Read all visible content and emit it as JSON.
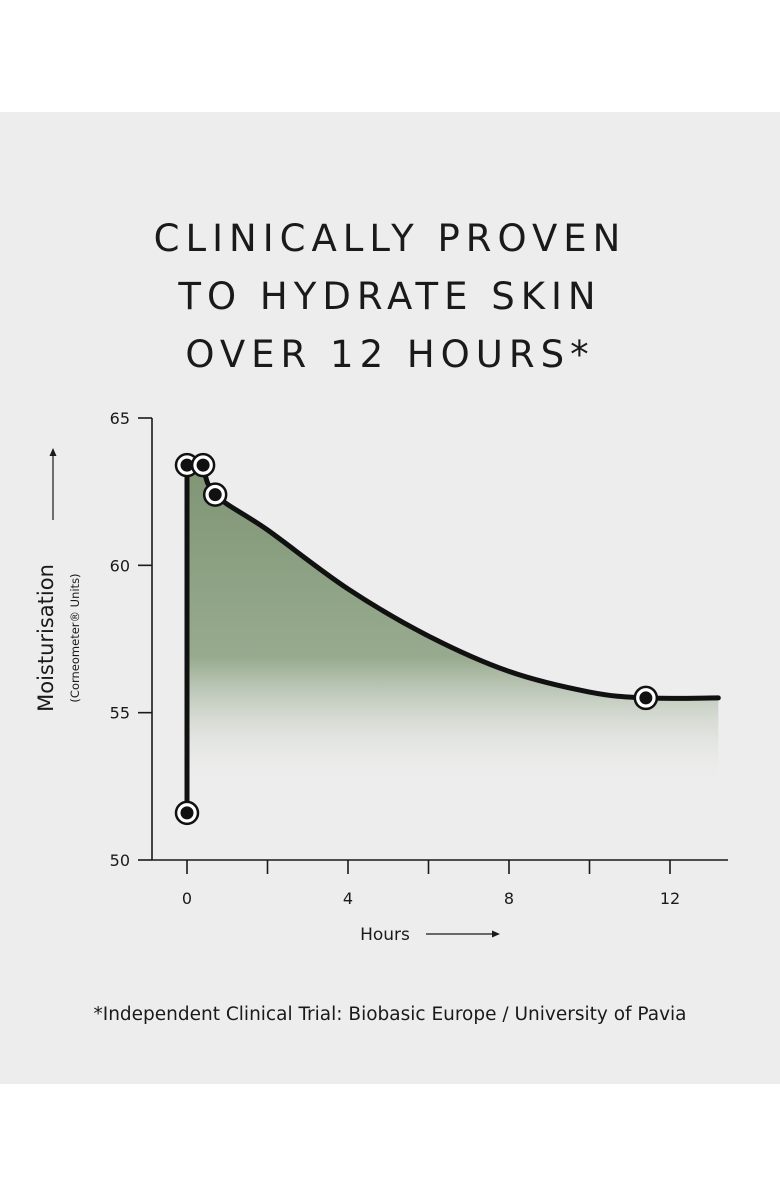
{
  "title_lines": [
    "CLINICALLY PROVEN",
    "TO HYDRATE SKIN",
    "OVER 12 HOURS*"
  ],
  "footnote": "*Independent Clinical Trial: Biobasic Europe / University of Pavia",
  "colors": {
    "panel": "#ededed",
    "area_fill": "#8a9f7f",
    "line": "#111111",
    "text": "#1a1a1a"
  },
  "chart_data": {
    "type": "area",
    "xlabel": "Hours",
    "ylabel": "Moisturisation",
    "ylabel_sub": "(Corneometer® Units)",
    "xlim": [
      -1,
      13.5
    ],
    "ylim": [
      50,
      65
    ],
    "xticks": [
      0,
      2,
      4,
      6,
      8,
      10,
      12
    ],
    "xtick_labels": [
      "0",
      "",
      "4",
      "",
      "8",
      "",
      "12"
    ],
    "yticks": [
      50,
      55,
      60,
      65
    ],
    "ytick_labels": [
      "50",
      "55",
      "60",
      "65"
    ],
    "points": [
      {
        "x": 0,
        "y": 51.6
      },
      {
        "x": 0,
        "y": 63.4
      },
      {
        "x": 0.4,
        "y": 63.4
      },
      {
        "x": 0.7,
        "y": 62.4
      },
      {
        "x": 11.4,
        "y": 55.5
      }
    ],
    "curve": [
      {
        "x": 0,
        "y": 51.6
      },
      {
        "x": 0,
        "y": 63.4
      },
      {
        "x": 0.4,
        "y": 63.4
      },
      {
        "x": 0.7,
        "y": 62.4
      },
      {
        "x": 2,
        "y": 61.2
      },
      {
        "x": 4,
        "y": 59.2
      },
      {
        "x": 6,
        "y": 57.6
      },
      {
        "x": 8,
        "y": 56.4
      },
      {
        "x": 10,
        "y": 55.7
      },
      {
        "x": 11.4,
        "y": 55.5
      },
      {
        "x": 13.2,
        "y": 55.5
      }
    ],
    "grid": false,
    "legend": "none"
  }
}
